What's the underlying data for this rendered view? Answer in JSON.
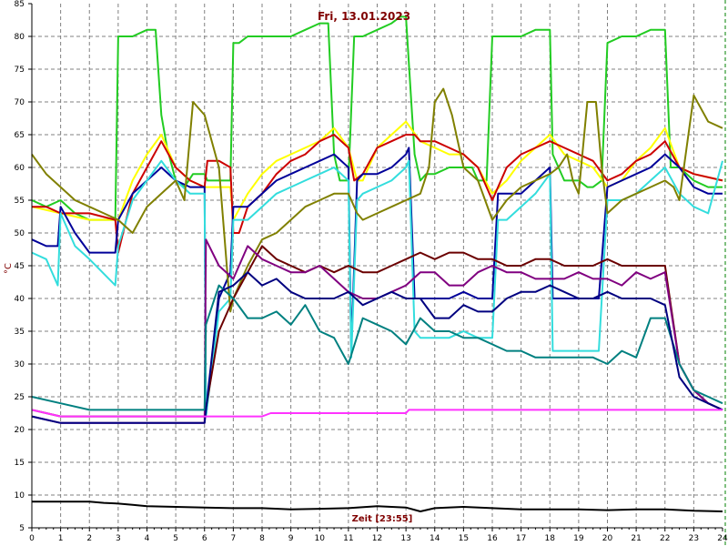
{
  "chart_data": {
    "type": "line",
    "title": "Fri, 13.01.2023",
    "xlabel": "Zeit [23:55]",
    "ylabel": "°C",
    "xlim": [
      0,
      24
    ],
    "ylim": [
      5,
      85
    ],
    "x_ticks": [
      "0",
      "1",
      "2",
      "3",
      "4",
      "5",
      "6",
      "7",
      "8",
      "9",
      "10",
      "11",
      "12",
      "13",
      "14",
      "15",
      "16",
      "17",
      "18",
      "19",
      "20",
      "21",
      "22",
      "23",
      "24"
    ],
    "y_ticks": [
      "5",
      "10",
      "15",
      "20",
      "25",
      "30",
      "35",
      "40",
      "45",
      "50",
      "55",
      "60",
      "65",
      "70",
      "75",
      "80",
      "85"
    ],
    "grid": true,
    "colors": {
      "background": "#ffffff",
      "grid": "#808080",
      "title": "#800000",
      "right_border": "#008000"
    },
    "series": [
      {
        "color": "#22cc22",
        "x": [
          0,
          0.5,
          1,
          1.5,
          2,
          2.5,
          2.9,
          3.0,
          3.2,
          3.5,
          4,
          4.3,
          4.5,
          4.7,
          5.0,
          5.3,
          5.6,
          6.0,
          6.1,
          6.5,
          6.9,
          7.0,
          7.2,
          7.5,
          8,
          8.5,
          9,
          9.5,
          10,
          10.3,
          10.5,
          10.7,
          11,
          11.2,
          11.5,
          12,
          12.5,
          12.8,
          13.0,
          13.3,
          13.5,
          13.7,
          14,
          14.5,
          15,
          15.3,
          15.5,
          15.8,
          16.0,
          16.2,
          16.5,
          17,
          17.5,
          18,
          18.1,
          18.5,
          19,
          19.3,
          19.5,
          19.8,
          20,
          20.5,
          21,
          21.5,
          22,
          22.2,
          22.5,
          23,
          23.5,
          24
        ],
        "y": [
          55,
          54,
          55,
          53,
          52,
          52,
          52,
          80,
          80,
          80,
          81,
          81,
          68,
          63,
          58,
          57,
          59,
          59,
          58,
          58,
          58,
          79,
          79,
          80,
          80,
          80,
          80,
          81,
          82,
          82,
          62,
          58,
          58,
          80,
          80,
          81,
          82,
          83,
          83,
          62,
          58,
          59,
          59,
          60,
          60,
          60,
          58,
          58,
          80,
          80,
          80,
          80,
          81,
          81,
          62,
          58,
          58,
          57,
          57,
          58,
          79,
          80,
          80,
          81,
          81,
          60,
          60,
          58,
          57,
          57
        ]
      },
      {
        "color": "#ffff00",
        "x": [
          0,
          1,
          2,
          3,
          3.5,
          4,
          4.5,
          5,
          5.5,
          6,
          6.3,
          6.5,
          6.9,
          7,
          7.5,
          8,
          8.5,
          9,
          9.5,
          10,
          10.5,
          11,
          11.3,
          11.5,
          12,
          12.5,
          13,
          13.5,
          14,
          14.5,
          15,
          15.5,
          16,
          16.5,
          17,
          17.5,
          18,
          18.5,
          19,
          19.5,
          20,
          20.5,
          21,
          21.5,
          22,
          22.5,
          23,
          24
        ],
        "y": [
          54,
          53,
          52,
          52,
          58,
          62,
          65,
          60,
          58,
          57,
          57,
          57,
          57,
          52,
          56,
          59,
          61,
          62,
          63,
          64,
          66,
          63,
          58,
          58,
          63,
          65,
          67,
          64,
          63,
          62,
          62,
          60,
          56,
          58,
          61,
          63,
          65,
          62,
          61,
          60,
          57,
          58,
          61,
          63,
          66,
          60,
          59,
          58
        ]
      },
      {
        "color": "#cc0000",
        "x": [
          0,
          0.5,
          1,
          1.5,
          2,
          2.9,
          3.0,
          3.5,
          4,
          4.5,
          5,
          5.5,
          6,
          6.1,
          6.5,
          6.9,
          7.0,
          7.2,
          7.5,
          8,
          8.5,
          9,
          9.5,
          10,
          10.5,
          11,
          11.2,
          11.5,
          12,
          12.5,
          13,
          13.3,
          13.5,
          14,
          14.5,
          15,
          15.5,
          16,
          16.2,
          16.5,
          17,
          17.5,
          18,
          18.5,
          19,
          19.5,
          20,
          20.5,
          21,
          21.5,
          22,
          22.5,
          23,
          24
        ],
        "y": [
          54,
          54,
          53,
          53,
          53,
          52,
          47,
          56,
          60,
          64,
          60,
          58,
          57,
          61,
          61,
          60,
          50,
          50,
          54,
          56,
          59,
          61,
          62,
          64,
          65,
          63,
          58,
          59,
          63,
          64,
          65,
          65,
          64,
          64,
          63,
          62,
          60,
          55,
          57,
          60,
          62,
          63,
          64,
          63,
          62,
          61,
          58,
          59,
          61,
          62,
          64,
          60,
          59,
          58
        ]
      },
      {
        "color": "#000099",
        "x": [
          0,
          0.5,
          0.9,
          1.0,
          1.5,
          2,
          2.9,
          3.0,
          3.5,
          4,
          4.5,
          5,
          5.5,
          6,
          6.05,
          6.5,
          6.9,
          7.0,
          7.5,
          8,
          8.5,
          9,
          9.5,
          10,
          10.5,
          11,
          11.1,
          11.3,
          11.5,
          12,
          12.5,
          13,
          13.1,
          13.3,
          13.5,
          14,
          14.5,
          15,
          15.5,
          16,
          16.2,
          16.5,
          17,
          17.5,
          18,
          18.1,
          18.5,
          19,
          19.5,
          19.7,
          20,
          20.5,
          21,
          21.5,
          22,
          22.5,
          23,
          23.5,
          24
        ],
        "y": [
          49,
          48,
          48,
          54,
          50,
          47,
          47,
          52,
          56,
          58,
          60,
          58,
          57,
          57,
          22,
          40,
          44,
          54,
          54,
          56,
          58,
          59,
          60,
          61,
          62,
          60,
          32,
          58,
          59,
          59,
          60,
          62,
          63,
          40,
          40,
          40,
          40,
          41,
          40,
          40,
          56,
          56,
          56,
          58,
          60,
          40,
          40,
          40,
          40,
          40,
          57,
          58,
          59,
          60,
          62,
          60,
          57,
          56,
          56
        ]
      },
      {
        "color": "#33dddd",
        "x": [
          0,
          0.5,
          0.9,
          1.0,
          1.5,
          2,
          2.9,
          3.0,
          3.5,
          4,
          4.5,
          5,
          5.5,
          6,
          6.05,
          6.5,
          6.9,
          7.0,
          7.5,
          8,
          8.5,
          9,
          9.5,
          10,
          10.5,
          11,
          11.1,
          11.3,
          11.5,
          12,
          12.5,
          13,
          13.1,
          13.3,
          13.5,
          14,
          14.5,
          15,
          15.5,
          16,
          16.2,
          16.5,
          17,
          17.5,
          18,
          18.1,
          18.5,
          19,
          19.5,
          19.7,
          20,
          20.5,
          21,
          21.5,
          22,
          22.5,
          23,
          23.5,
          24
        ],
        "y": [
          47,
          46,
          42,
          53,
          48,
          46,
          42,
          48,
          55,
          58,
          61,
          58,
          56,
          56,
          22,
          38,
          40,
          52,
          52,
          54,
          56,
          57,
          58,
          59,
          60,
          58,
          31,
          55,
          56,
          57,
          58,
          60,
          61,
          35,
          34,
          34,
          34,
          35,
          34,
          34,
          52,
          52,
          54,
          56,
          59,
          32,
          32,
          32,
          32,
          32,
          55,
          55,
          56,
          58,
          60,
          56,
          54,
          53,
          61
        ]
      },
      {
        "color": "#808000",
        "x": [
          0,
          0.5,
          1,
          1.5,
          2,
          2.5,
          3,
          3.5,
          4,
          4.5,
          5,
          5.3,
          5.6,
          6,
          6.5,
          6.9,
          7,
          7.5,
          8,
          8.5,
          9,
          9.5,
          10,
          10.5,
          11,
          11.3,
          11.5,
          12,
          12.5,
          13,
          13.5,
          13.8,
          14,
          14.3,
          14.6,
          15,
          15.5,
          16,
          16.5,
          17,
          17.5,
          18,
          18.3,
          18.6,
          18.8,
          19,
          19.3,
          19.6,
          19.8,
          20,
          20.5,
          21,
          21.5,
          22,
          22.3,
          22.5,
          23,
          23.5,
          24
        ],
        "y": [
          62,
          59,
          57,
          55,
          54,
          53,
          52,
          50,
          54,
          56,
          58,
          55,
          70,
          68,
          60,
          38,
          40,
          45,
          49,
          50,
          52,
          54,
          55,
          56,
          56,
          53,
          52,
          53,
          54,
          55,
          56,
          60,
          70,
          72,
          68,
          60,
          58,
          52,
          55,
          57,
          58,
          59,
          60,
          62,
          58,
          56,
          70,
          70,
          60,
          53,
          55,
          56,
          57,
          58,
          57,
          55,
          71,
          67,
          66
        ]
      },
      {
        "color": "#6b0000",
        "x": [
          0,
          1,
          2,
          3,
          4,
          5,
          6,
          6.5,
          7,
          7.5,
          8,
          8.5,
          9,
          9.5,
          10,
          10.5,
          11,
          11.5,
          12,
          12.5,
          13,
          13.5,
          14,
          14.5,
          15,
          15.5,
          16,
          16.5,
          17,
          17.5,
          18,
          18.5,
          19,
          19.5,
          20,
          20.5,
          21,
          21.5,
          22,
          22.5,
          23,
          23.5,
          24
        ],
        "y": [
          23,
          22,
          22,
          22,
          22,
          22,
          22,
          35,
          40,
          44,
          48,
          46,
          45,
          44,
          45,
          44,
          45,
          44,
          44,
          45,
          46,
          47,
          46,
          47,
          47,
          46,
          46,
          45,
          45,
          46,
          46,
          45,
          45,
          45,
          46,
          45,
          45,
          45,
          45,
          30,
          26,
          24,
          23
        ]
      },
      {
        "color": "#800080",
        "x": [
          0,
          1,
          2,
          3,
          4,
          5,
          6,
          6.05,
          6.5,
          7,
          7.5,
          8,
          8.5,
          9,
          9.5,
          10,
          10.5,
          11,
          11.5,
          12,
          12.5,
          13,
          13.5,
          14,
          14.5,
          15,
          15.5,
          16,
          16.5,
          17,
          17.5,
          18,
          18.5,
          19,
          19.5,
          20,
          20.5,
          21,
          21.5,
          22,
          22.5,
          23,
          23.5,
          24
        ],
        "y": [
          22,
          21,
          21,
          21,
          21,
          21,
          21,
          49,
          45,
          43,
          48,
          46,
          45,
          44,
          44,
          45,
          43,
          41,
          40,
          40,
          41,
          42,
          44,
          44,
          42,
          42,
          44,
          45,
          44,
          44,
          43,
          43,
          43,
          44,
          43,
          43,
          42,
          44,
          43,
          44,
          30,
          26,
          24,
          23
        ]
      },
      {
        "color": "#008080",
        "x": [
          0,
          1,
          2,
          3,
          4,
          5,
          6,
          6.05,
          6.5,
          7,
          7.5,
          8,
          8.5,
          9,
          9.5,
          10,
          10.5,
          11,
          11.5,
          12,
          12.5,
          13,
          13.5,
          14,
          14.5,
          15,
          15.5,
          16,
          16.5,
          17,
          17.5,
          18,
          18.5,
          19,
          19.5,
          20,
          20.5,
          21,
          21.5,
          22,
          22.5,
          23,
          23.5,
          24
        ],
        "y": [
          25,
          24,
          23,
          23,
          23,
          23,
          23,
          36,
          42,
          40,
          37,
          37,
          38,
          36,
          39,
          35,
          34,
          30,
          37,
          36,
          35,
          33,
          37,
          35,
          35,
          34,
          34,
          33,
          32,
          32,
          31,
          31,
          31,
          31,
          31,
          30,
          32,
          31,
          37,
          37,
          30,
          26,
          25,
          24
        ]
      },
      {
        "color": "#000080",
        "x": [
          0,
          1,
          2,
          3,
          4,
          5,
          6,
          6.5,
          7,
          7.5,
          8,
          8.5,
          9,
          9.5,
          10,
          10.5,
          11,
          11.5,
          12,
          12.5,
          13,
          13.5,
          14,
          14.5,
          15,
          15.5,
          16,
          16.5,
          17,
          17.5,
          18,
          18.5,
          19,
          19.5,
          20,
          20.5,
          21,
          21.5,
          22,
          22.5,
          23,
          23.5,
          24
        ],
        "y": [
          22,
          21,
          21,
          21,
          21,
          21,
          21,
          41,
          42,
          44,
          42,
          43,
          41,
          40,
          40,
          40,
          41,
          39,
          40,
          41,
          40,
          40,
          37,
          37,
          39,
          38,
          38,
          40,
          41,
          41,
          42,
          41,
          40,
          40,
          41,
          40,
          40,
          40,
          39,
          28,
          25,
          24,
          23
        ]
      },
      {
        "color": "#ff33ff",
        "x": [
          0,
          1,
          2,
          3,
          4,
          5,
          6,
          7,
          8,
          8.3,
          9,
          10,
          11,
          12,
          13,
          13.1,
          14,
          15,
          16,
          17,
          18,
          19,
          20,
          21,
          22,
          23,
          24
        ],
        "y": [
          23,
          22,
          22,
          22,
          22,
          22,
          22,
          22,
          22,
          22.5,
          22.5,
          22.5,
          22.5,
          22.5,
          22.5,
          23,
          23,
          23,
          23,
          23,
          23,
          23,
          23,
          23,
          23,
          23,
          23
        ]
      },
      {
        "color": "#000000",
        "x": [
          0,
          0.5,
          1,
          1.5,
          2,
          2.5,
          3,
          3.5,
          4,
          5,
          6,
          7,
          8,
          9,
          10,
          11,
          12,
          13,
          13.5,
          14,
          15,
          16,
          17,
          18,
          19,
          20,
          21,
          22,
          23,
          24
        ],
        "y": [
          9,
          9,
          9,
          9,
          9,
          8.8,
          8.7,
          8.5,
          8.3,
          8.2,
          8.1,
          8.0,
          8.0,
          7.8,
          7.9,
          8.0,
          8.3,
          8.1,
          7.5,
          8.0,
          8.2,
          8.0,
          7.8,
          7.8,
          7.8,
          7.7,
          7.8,
          7.8,
          7.6,
          7.5
        ]
      }
    ]
  }
}
